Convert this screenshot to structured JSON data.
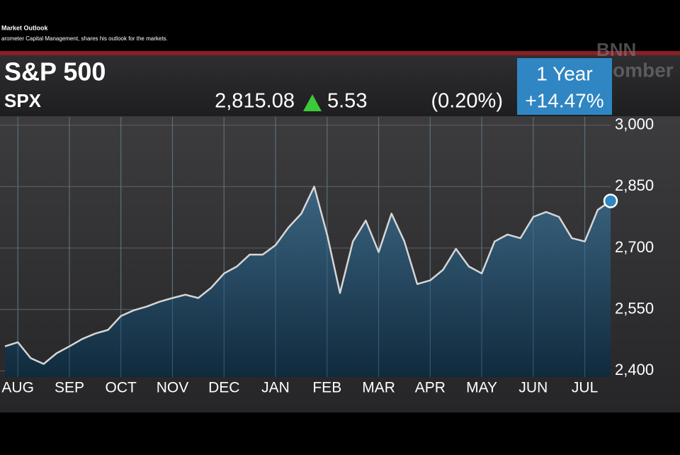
{
  "caption": {
    "title": "Market Outlook",
    "text": "arometer Capital Management, shares his outlook for the markets."
  },
  "watermark": {
    "line1": "BNN",
    "line2": "Bloomber"
  },
  "header": {
    "price": "2,815.08",
    "change": "5.53",
    "change_pct": "(0.20%)",
    "period": "1 Year",
    "period_change": "+14.47%"
  },
  "chart_data": {
    "type": "area",
    "title": "S&P 500",
    "subtitle": "SPX",
    "color": "#1d4a66",
    "line_color": "#d6d6d6",
    "categories": [
      null,
      "AUG",
      null,
      null,
      null,
      "SEP",
      null,
      null,
      null,
      "OCT",
      null,
      null,
      null,
      "NOV",
      null,
      null,
      null,
      "DEC",
      null,
      null,
      null,
      "JAN",
      null,
      null,
      null,
      "FEB",
      null,
      null,
      null,
      "MAR",
      null,
      null,
      null,
      "APR",
      null,
      null,
      null,
      "MAY",
      null,
      null,
      null,
      "JUN",
      null,
      null,
      null,
      "JUL",
      null,
      null
    ],
    "values": [
      2460,
      2470,
      2431,
      2417,
      2443,
      2460,
      2478,
      2491,
      2500,
      2534,
      2548,
      2557,
      2569,
      2578,
      2586,
      2578,
      2603,
      2638,
      2655,
      2684,
      2684,
      2707,
      2750,
      2784,
      2850,
      2733,
      2590,
      2716,
      2767,
      2690,
      2784,
      2716,
      2612,
      2621,
      2647,
      2698,
      2655,
      2638,
      2716,
      2733,
      2724,
      2776,
      2788,
      2776,
      2724,
      2716,
      2793,
      2815
    ],
    "ylim": [
      2385,
      3020
    ],
    "yticks": [
      {
        "value": 2400,
        "label": "2,400"
      },
      {
        "value": 2550,
        "label": "2,550"
      },
      {
        "value": 2700,
        "label": "2,700"
      },
      {
        "value": 2850,
        "label": "2,850"
      },
      {
        "value": 3000,
        "label": "3,000"
      }
    ],
    "grid": true
  }
}
